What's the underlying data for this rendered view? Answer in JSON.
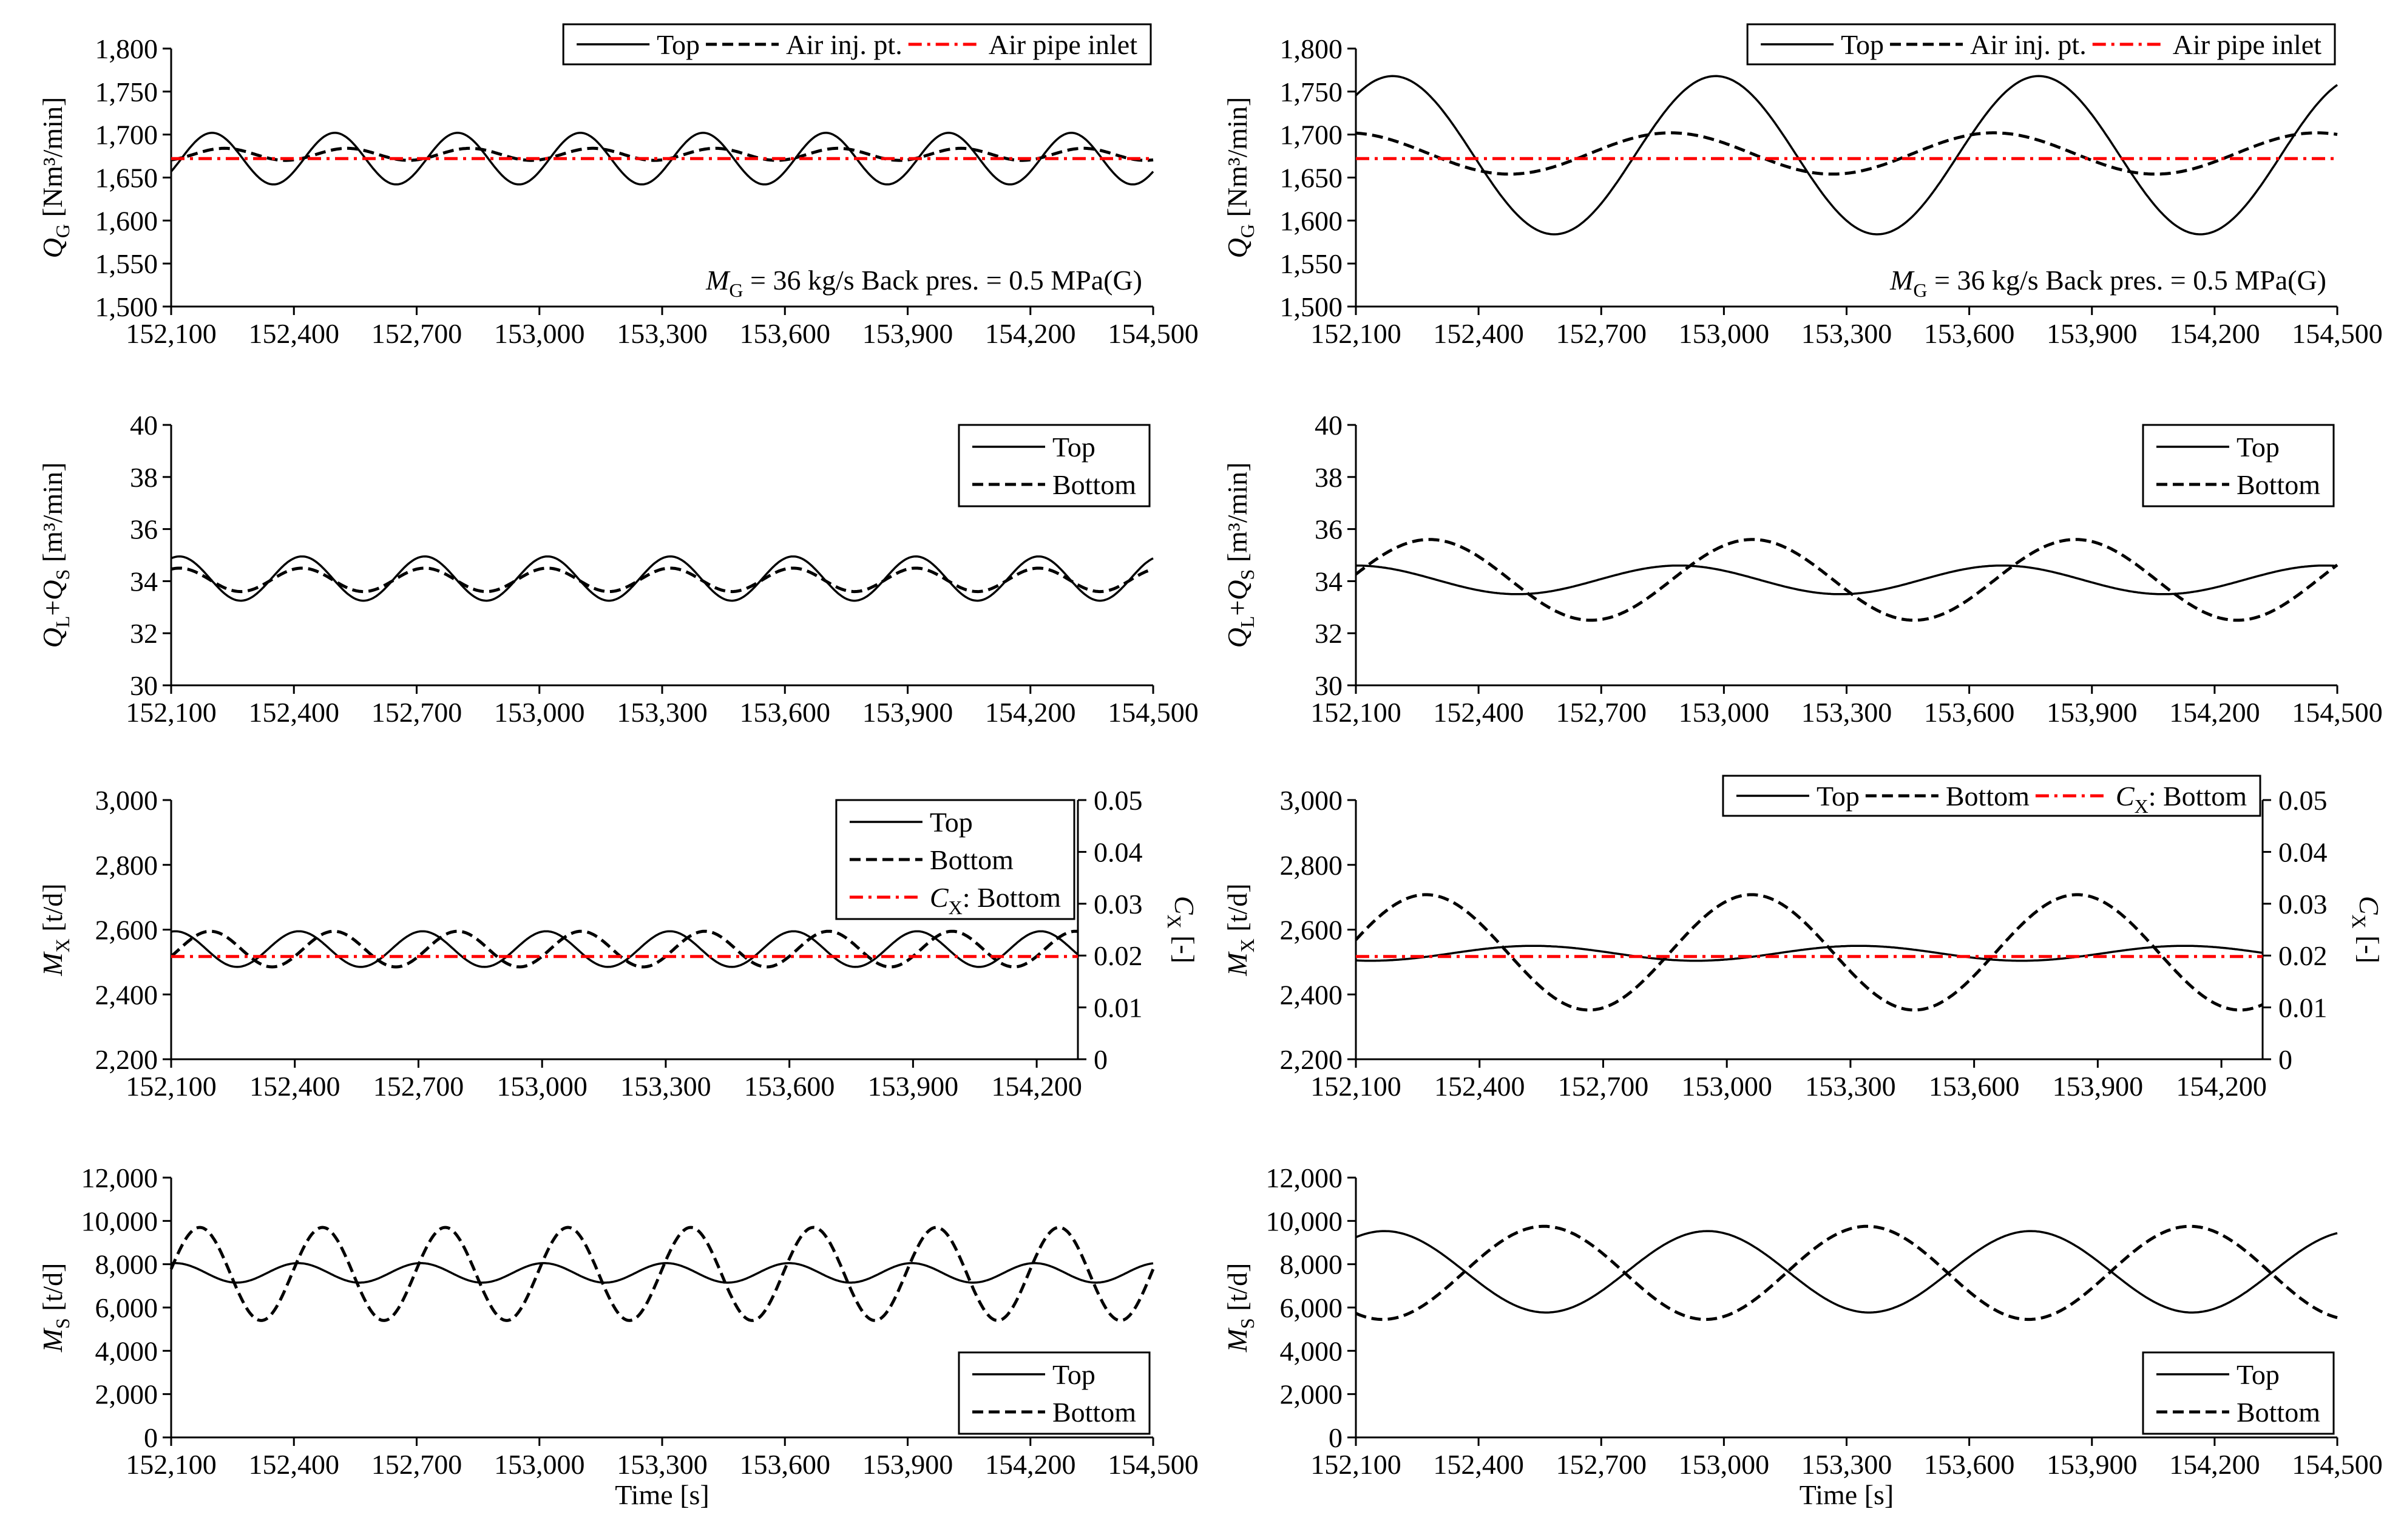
{
  "colors": {
    "axis": "#000000",
    "series": "#000000",
    "red": "#ff0000"
  },
  "chart_data": [
    {
      "id": "qg_left",
      "type": "line",
      "xlabel": "",
      "xlim": [
        152100,
        154500
      ],
      "xticks": [
        152100,
        152400,
        152700,
        153000,
        153300,
        153600,
        153900,
        154200,
        154500
      ],
      "ylim": [
        1500,
        1800
      ],
      "yticks": [
        1500,
        1550,
        1600,
        1650,
        1700,
        1750,
        1800
      ],
      "ylabel": {
        "main": "Q",
        "sub": "G",
        "unit": "[Nm³/min]"
      },
      "annotation": {
        "a": "M",
        "b": "G",
        "c": "= 36 kg/s  Back pres. = 0.5 MPa(G)"
      },
      "legend": {
        "placement": "top-right",
        "layout": "row"
      },
      "series": [
        {
          "name": "Top",
          "style": "solid",
          "color": "#000000",
          "mean": 1672,
          "amp": 30,
          "period": 300,
          "phase_at": 152200
        },
        {
          "name": "Air inj. pt.",
          "style": "dash",
          "color": "#000000",
          "mean": 1677,
          "amp": 7,
          "period": 300,
          "phase_at": 152230
        },
        {
          "name": "Air pipe inlet",
          "style": "dashdot",
          "color": "#ff0000",
          "mean": 1672,
          "amp": 0,
          "period": 300,
          "phase_at": 152100
        }
      ]
    },
    {
      "id": "qg_right",
      "type": "line",
      "xlabel": "",
      "xlim": [
        152100,
        154500
      ],
      "xticks": [
        152100,
        152400,
        152700,
        153000,
        153300,
        153600,
        153900,
        154200,
        154500
      ],
      "ylim": [
        1500,
        1800
      ],
      "yticks": [
        1500,
        1550,
        1600,
        1650,
        1700,
        1750,
        1800
      ],
      "ylabel": {
        "main": "Q",
        "sub": "G",
        "unit": "[Nm³/min]"
      },
      "annotation": {
        "a": "M",
        "b": "G",
        "c": "= 36 kg/s  Back pres. = 0.5 MPa(G)"
      },
      "legend": {
        "placement": "top-right",
        "layout": "row"
      },
      "series": [
        {
          "name": "Top",
          "style": "solid",
          "color": "#000000",
          "mean": 1676,
          "amp": 92,
          "period": 790,
          "phase_at": 152190
        },
        {
          "name": "Air inj. pt.",
          "style": "dash",
          "color": "#000000",
          "mean": 1678,
          "amp": 24,
          "period": 790,
          "phase_at": 152080
        },
        {
          "name": "Air pipe inlet",
          "style": "dashdot",
          "color": "#ff0000",
          "mean": 1672,
          "amp": 0,
          "period": 790,
          "phase_at": 152100
        }
      ]
    },
    {
      "id": "ql_left",
      "type": "line",
      "xlabel": "",
      "xlim": [
        152100,
        154500
      ],
      "xticks": [
        152100,
        152400,
        152700,
        153000,
        153300,
        153600,
        153900,
        154200,
        154500
      ],
      "ylim": [
        30,
        40
      ],
      "yticks": [
        30,
        32,
        34,
        36,
        38,
        40
      ],
      "ylabel": {
        "main": "Q",
        "sub": "L",
        "mid": "+Q",
        "sub2": "S",
        "unit": "[m³/min]"
      },
      "legend": {
        "placement": "top-right",
        "layout": "column"
      },
      "series": [
        {
          "name": "Top",
          "style": "solid",
          "color": "#000000",
          "mean": 34.1,
          "amp": 0.85,
          "period": 300,
          "phase_at": 152420
        },
        {
          "name": "Bottom",
          "style": "dash",
          "color": "#000000",
          "mean": 34.05,
          "amp": 0.45,
          "period": 300,
          "phase_at": 152420
        }
      ]
    },
    {
      "id": "ql_right",
      "type": "line",
      "xlabel": "",
      "xlim": [
        152100,
        154500
      ],
      "xticks": [
        152100,
        152400,
        152700,
        153000,
        153300,
        153600,
        153900,
        154200,
        154500
      ],
      "ylim": [
        30,
        40
      ],
      "yticks": [
        30,
        32,
        34,
        36,
        38,
        40
      ],
      "ylabel": {
        "main": "Q",
        "sub": "L",
        "mid": "+Q",
        "sub2": "S",
        "unit": "[m³/min]"
      },
      "legend": {
        "placement": "top-right",
        "layout": "column"
      },
      "series": [
        {
          "name": "Top",
          "style": "solid",
          "color": "#000000",
          "mean": 34.05,
          "amp": 0.55,
          "period": 790,
          "phase_at": 152100
        },
        {
          "name": "Bottom",
          "style": "dash",
          "color": "#000000",
          "mean": 34.05,
          "amp": 1.55,
          "period": 790,
          "phase_at": 152280
        }
      ]
    },
    {
      "id": "mx_left",
      "type": "line",
      "xlabel": "",
      "xlim": [
        152100,
        154300
      ],
      "xticks": [
        152100,
        152400,
        152700,
        153000,
        153300,
        153600,
        153900,
        154200
      ],
      "ylim": [
        2200,
        3000
      ],
      "yticks": [
        2200,
        2400,
        2600,
        2800,
        3000
      ],
      "ylabel": {
        "main": "M",
        "sub": "X",
        "unit": "[t/d]"
      },
      "y2lim": [
        0,
        0.05
      ],
      "y2ticks": [
        0,
        0.01,
        0.02,
        0.03,
        0.04,
        0.05
      ],
      "y2ticklabels": [
        "0",
        "0.01",
        "0.02",
        "0.03",
        "0.04",
        "0.05"
      ],
      "y2label": {
        "main": "C",
        "sub": "X",
        "unit": "[-]"
      },
      "legend": {
        "placement": "top-right",
        "layout": "column"
      },
      "series": [
        {
          "name": "Top",
          "style": "solid",
          "color": "#000000",
          "mean": 2540,
          "amp": 55,
          "period": 300,
          "phase_at": 152110
        },
        {
          "name": "Bottom",
          "style": "dash",
          "color": "#000000",
          "mean": 2540,
          "amp": 55,
          "period": 300,
          "phase_at": 152195
        },
        {
          "name": "C",
          "name_sub": "X",
          "name_rest": ": Bottom",
          "style": "dashdot",
          "color": "#ff0000",
          "mean": 2517,
          "amp": 0,
          "period": 300,
          "phase_at": 152100
        }
      ]
    },
    {
      "id": "mx_right",
      "type": "line",
      "xlabel": "",
      "xlim": [
        152100,
        154300
      ],
      "xticks": [
        152100,
        152400,
        152700,
        153000,
        153300,
        153600,
        153900,
        154200
      ],
      "ylim": [
        2200,
        3000
      ],
      "yticks": [
        2200,
        2400,
        2600,
        2800,
        3000
      ],
      "ylabel": {
        "main": "M",
        "sub": "X",
        "unit": "[t/d]"
      },
      "y2lim": [
        0,
        0.05
      ],
      "y2ticks": [
        0,
        0.01,
        0.02,
        0.03,
        0.04,
        0.05
      ],
      "y2ticklabels": [
        "0",
        "0.01",
        "0.02",
        "0.03",
        "0.04",
        "0.05"
      ],
      "y2label": {
        "main": "C",
        "sub": "X",
        "unit": "[-]"
      },
      "legend": {
        "placement": "top-right",
        "layout": "row"
      },
      "series": [
        {
          "name": "Top",
          "style": "solid",
          "color": "#000000",
          "mean": 2527,
          "amp": 23,
          "period": 790,
          "phase_at": 152530
        },
        {
          "name": "Bottom",
          "style": "dash",
          "color": "#000000",
          "mean": 2530,
          "amp": 178,
          "period": 790,
          "phase_at": 152270
        },
        {
          "name": "C",
          "name_sub": "X",
          "name_rest": ": Bottom",
          "style": "dashdot",
          "color": "#ff0000",
          "mean": 2517,
          "amp": 0,
          "period": 790,
          "phase_at": 152100
        }
      ]
    },
    {
      "id": "ms_left",
      "type": "line",
      "xlabel": "Time [s]",
      "xlim": [
        152100,
        154500
      ],
      "xticks": [
        152100,
        152400,
        152700,
        153000,
        153300,
        153600,
        153900,
        154200,
        154500
      ],
      "ylim": [
        0,
        12000
      ],
      "yticks": [
        0,
        2000,
        4000,
        6000,
        8000,
        10000,
        12000
      ],
      "ylabel": {
        "main": "M",
        "sub": "S",
        "unit": "[t/d]"
      },
      "legend": {
        "placement": "bottom-right",
        "layout": "column"
      },
      "series": [
        {
          "name": "Top",
          "style": "solid",
          "color": "#000000",
          "mean": 7600,
          "amp": 450,
          "period": 300,
          "phase_at": 152110
        },
        {
          "name": "Bottom",
          "style": "dash",
          "color": "#000000",
          "mean": 7550,
          "amp": 2150,
          "period": 300,
          "phase_at": 152170
        }
      ]
    },
    {
      "id": "ms_right",
      "type": "line",
      "xlabel": "Time [s]",
      "xlim": [
        152100,
        154500
      ],
      "xticks": [
        152100,
        152400,
        152700,
        153000,
        153300,
        153600,
        153900,
        154200,
        154500
      ],
      "ylim": [
        0,
        12000
      ],
      "yticks": [
        0,
        2000,
        4000,
        6000,
        8000,
        10000,
        12000
      ],
      "ylabel": {
        "main": "M",
        "sub": "S",
        "unit": "[t/d]"
      },
      "legend": {
        "placement": "bottom-right",
        "layout": "column"
      },
      "series": [
        {
          "name": "Top",
          "style": "solid",
          "color": "#000000",
          "mean": 7650,
          "amp": 1880,
          "period": 790,
          "phase_at": 152170
        },
        {
          "name": "Bottom",
          "style": "dash",
          "color": "#000000",
          "mean": 7600,
          "amp": 2150,
          "period": 790,
          "phase_at": 152560
        }
      ]
    }
  ]
}
